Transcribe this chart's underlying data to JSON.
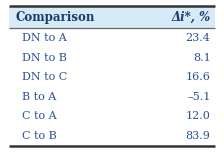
{
  "title_col1": "Comparison",
  "title_col2": "Δi*, %",
  "rows": [
    [
      "DN to A",
      "23.4"
    ],
    [
      "DN to B",
      "8.1"
    ],
    [
      "DN to C",
      "16.6"
    ],
    [
      "B to A",
      "–5.1"
    ],
    [
      "C to A",
      "12.0"
    ],
    [
      "C to B",
      "83.9"
    ]
  ],
  "header_bg": "#d6eaf8",
  "header_text_color": "#1a3a6a",
  "row_text_color": "#2a5090",
  "outer_border_color": "#333333",
  "inner_line_color": "#666666",
  "bg_color": "#ffffff",
  "header_fontsize": 8.5,
  "row_fontsize": 8.0,
  "fig_width": 2.24,
  "fig_height": 1.52,
  "dpi": 100
}
